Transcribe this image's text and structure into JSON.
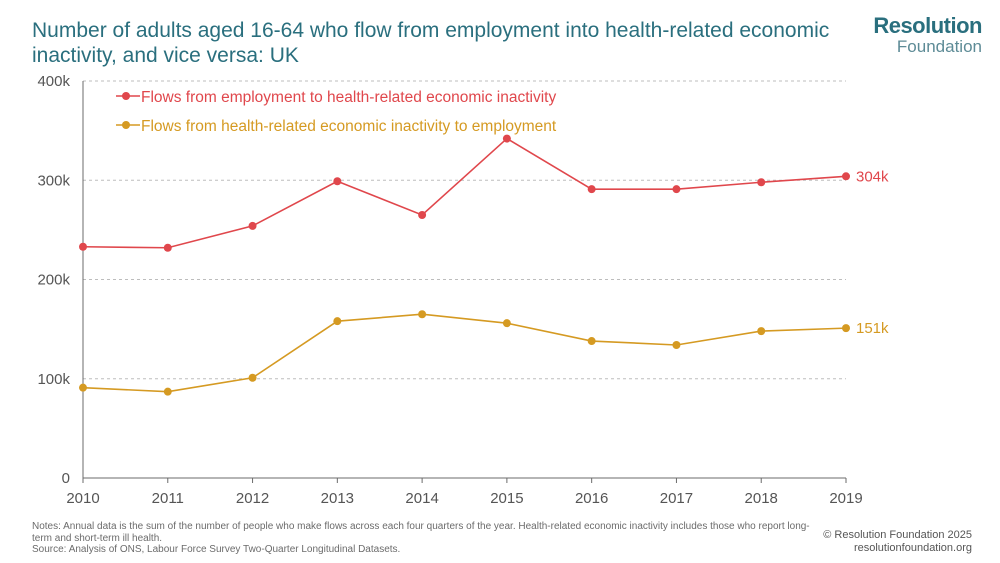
{
  "header": {
    "title": "Number of adults aged 16-64 who flow from employment into health-related economic inactivity, and vice versa: UK"
  },
  "brand": {
    "name_top": "Resolution",
    "name_bottom": "Foundation"
  },
  "colors": {
    "series_red": "#e0474c",
    "series_gold": "#d59a22",
    "title_teal": "#2a6f7e",
    "grid": "#bdbdbd",
    "axis": "#6b6b6b"
  },
  "chart_data": {
    "type": "line",
    "title": "Number of adults aged 16-64 who flow from employment into health-related economic inactivity, and vice versa: UK",
    "x": [
      2010,
      2011,
      2012,
      2013,
      2014,
      2015,
      2016,
      2017,
      2018,
      2019
    ],
    "x_tick_labels": [
      "2010",
      "2011",
      "2012",
      "2013",
      "2014",
      "2015",
      "2016",
      "2017",
      "2018",
      "2019"
    ],
    "y_tick_values": [
      0,
      100000,
      200000,
      300000,
      400000
    ],
    "y_tick_labels": [
      "0",
      "100k",
      "200k",
      "300k",
      "400k"
    ],
    "ylim": [
      0,
      400000
    ],
    "xlabel": "",
    "ylabel": "",
    "grid": true,
    "legend_position": "top-left",
    "series": [
      {
        "name": "Flows from employment to health-related economic inactivity",
        "color": "#e0474c",
        "values": [
          233000,
          232000,
          254000,
          299000,
          265000,
          342000,
          291000,
          291000,
          298000,
          304000
        ],
        "end_label": "304k"
      },
      {
        "name": "Flows from health-related economic inactivity to employment",
        "color": "#d59a22",
        "values": [
          91000,
          87000,
          101000,
          158000,
          165000,
          156000,
          138000,
          134000,
          148000,
          151000
        ],
        "end_label": "151k"
      }
    ]
  },
  "footer": {
    "notes_line": "Notes: Annual data is the sum of the number of people who make flows across each four quarters of the year. Health-related economic inactivity includes those who report long-term and short-term ill health.",
    "source_line": "Source: Analysis of ONS, Labour Force Survey Two-Quarter Longitudinal Datasets.",
    "copyright": "© Resolution Foundation 2025",
    "website": "resolutionfoundation.org"
  }
}
